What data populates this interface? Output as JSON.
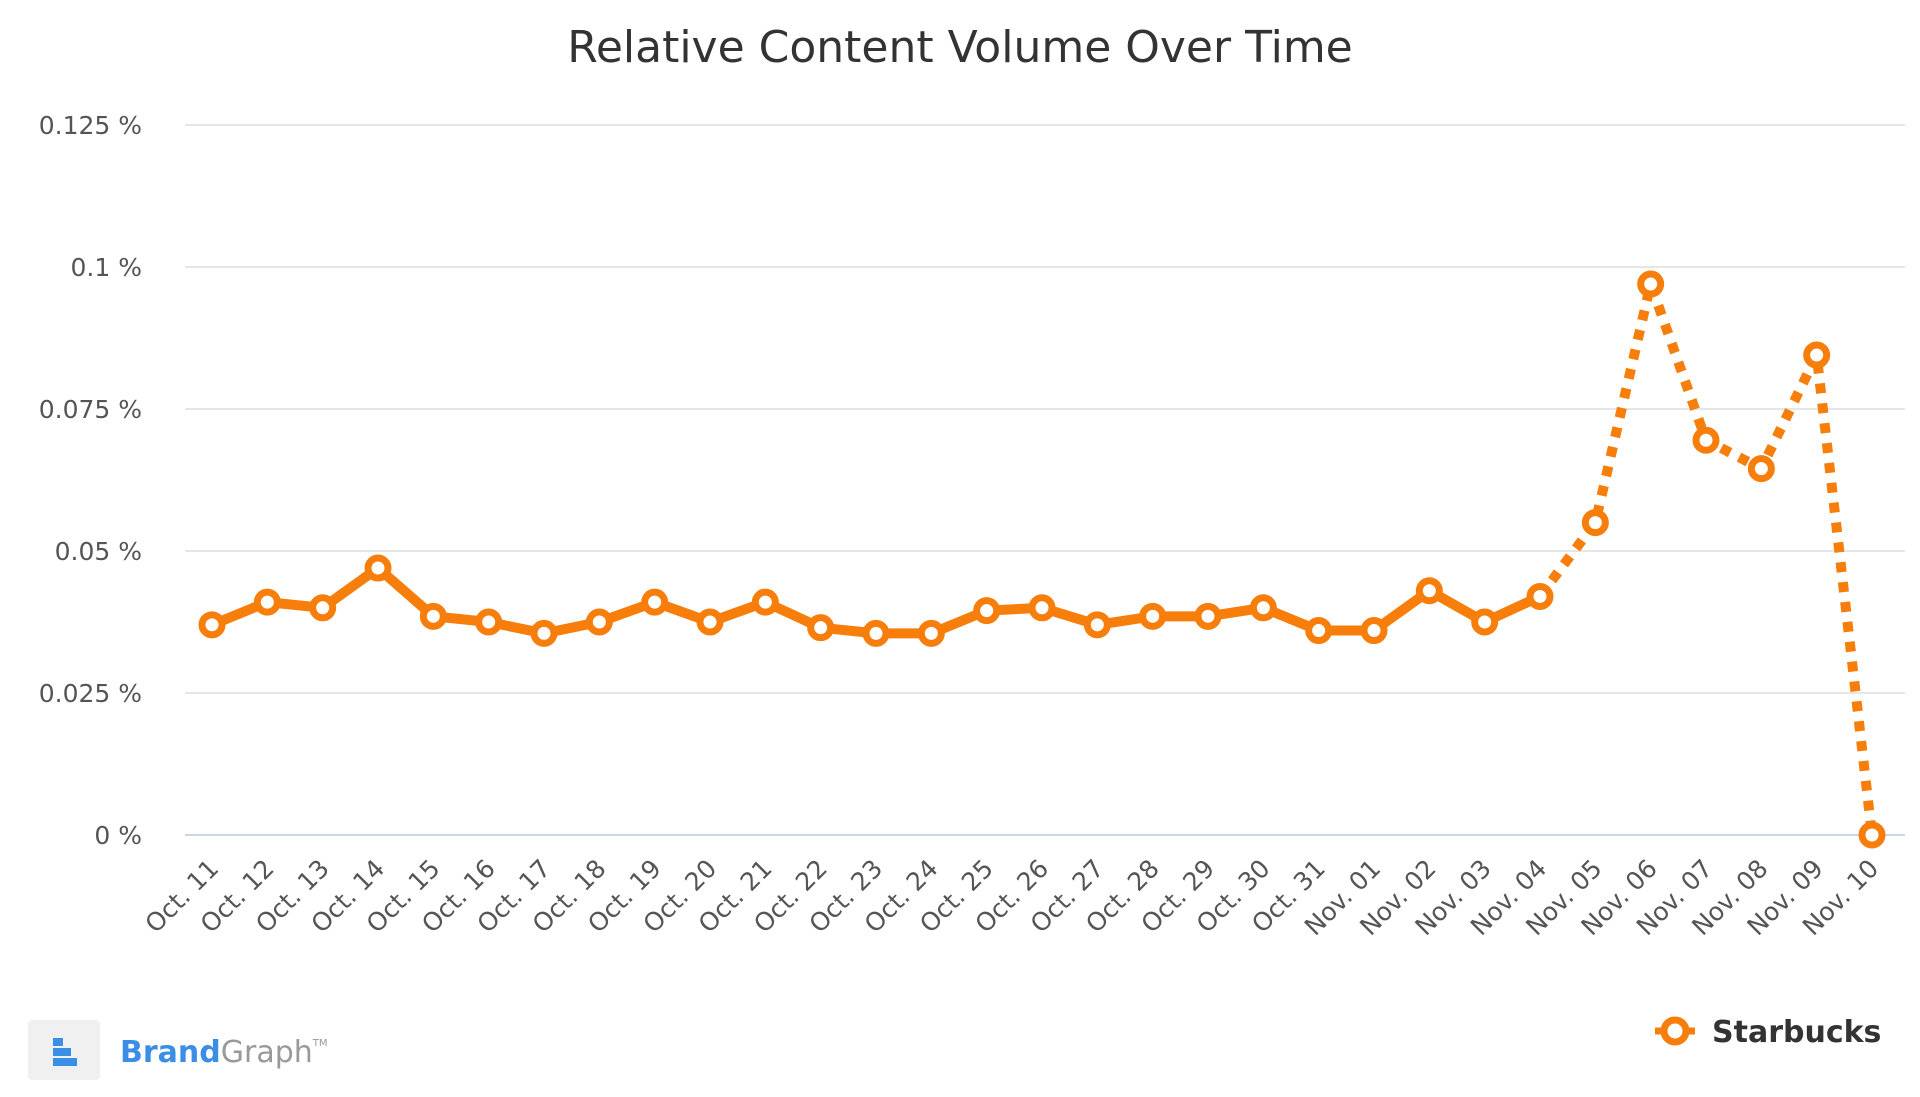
{
  "chart_data": {
    "type": "line",
    "title": "Relative Content Volume Over Time",
    "xlabel": "",
    "ylabel": "",
    "categories": [
      "Oct. 11",
      "Oct. 12",
      "Oct. 13",
      "Oct. 14",
      "Oct. 15",
      "Oct. 16",
      "Oct. 17",
      "Oct. 18",
      "Oct. 19",
      "Oct. 20",
      "Oct. 21",
      "Oct. 22",
      "Oct. 23",
      "Oct. 24",
      "Oct. 25",
      "Oct. 26",
      "Oct. 27",
      "Oct. 28",
      "Oct. 29",
      "Oct. 30",
      "Oct. 31",
      "Nov. 01",
      "Nov. 02",
      "Nov. 03",
      "Nov. 04",
      "Nov. 05",
      "Nov. 06",
      "Nov. 07",
      "Nov. 08",
      "Nov. 09",
      "Nov. 10"
    ],
    "yticks": [
      {
        "value": 0,
        "label": "0 %"
      },
      {
        "value": 0.025,
        "label": "0.025 %"
      },
      {
        "value": 0.05,
        "label": "0.05 %"
      },
      {
        "value": 0.075,
        "label": "0.075 %"
      },
      {
        "value": 0.1,
        "label": "0.1 %"
      },
      {
        "value": 0.125,
        "label": "0.125 %"
      }
    ],
    "ylim": [
      0,
      0.125
    ],
    "grid": true,
    "legend_position": "bottom-right",
    "series": [
      {
        "name": "Starbucks",
        "color": "#f77e0b",
        "values": [
          0.037,
          0.041,
          0.04,
          0.047,
          0.0385,
          0.0375,
          0.0355,
          0.0375,
          0.041,
          0.0375,
          0.041,
          0.0365,
          0.0355,
          0.0355,
          0.0395,
          0.04,
          0.037,
          0.0385,
          0.0385,
          0.04,
          0.036,
          0.036,
          0.043,
          0.0375,
          0.042,
          0.055,
          0.097,
          0.0695,
          0.0645,
          0.0845,
          0.0
        ],
        "solid_until_index": 24
      }
    ]
  },
  "branding": {
    "brand_part1": "Brand",
    "brand_part2": "Graph",
    "trademark": "TM",
    "logo_icon": "brandgraph-logo-icon"
  },
  "colors": {
    "series": "#f77e0b",
    "grid": "#e6e6e6",
    "baseline": "#ccd6eb",
    "brand_blue": "#3b8ee6",
    "brand_gray": "#999999"
  }
}
